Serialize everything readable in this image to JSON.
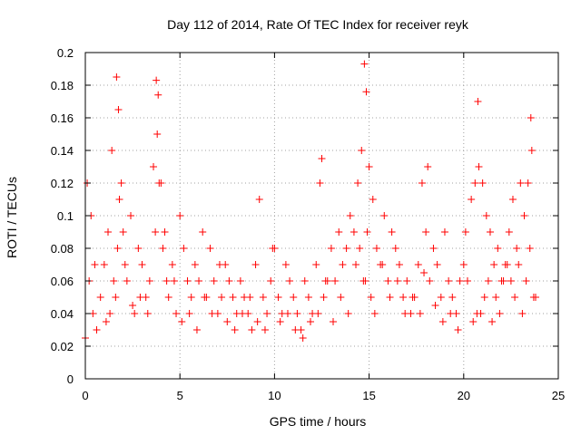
{
  "chart_data": {
    "type": "scatter",
    "title": "Day 112 of 2014, Rate Of TEC Index for receiver reyk",
    "xlabel": "GPS time / hours",
    "ylabel": "ROTI / TECUs",
    "xlim": [
      0,
      25
    ],
    "ylim": [
      0,
      0.2
    ],
    "x_ticks": [
      "0",
      "5",
      "10",
      "15",
      "20",
      "25"
    ],
    "y_ticks": [
      "0",
      "0.02",
      "0.04",
      "0.06",
      "0.08",
      "0.1",
      "0.12",
      "0.14",
      "0.16",
      "0.18",
      "0.2"
    ],
    "grid": true,
    "marker": "+",
    "color": "#ff0000",
    "series": [
      {
        "x": [
          0.0,
          0.2,
          0.4,
          0.6,
          0.8,
          1.0,
          1.2,
          1.4,
          1.6,
          1.8,
          2.0,
          2.2,
          2.4,
          2.6,
          2.8,
          3.0,
          3.2,
          3.4,
          3.6,
          3.8,
          4.0,
          4.2,
          4.4,
          4.6,
          4.8,
          5.0,
          5.2,
          5.4,
          5.6,
          5.8,
          6.0,
          6.2,
          6.4,
          6.6,
          6.8,
          7.0,
          7.2,
          7.4,
          7.6,
          7.8,
          8.0,
          8.2,
          8.4,
          8.6,
          8.8,
          9.0,
          9.2,
          9.4,
          9.6,
          9.8,
          10.0,
          10.2,
          10.4,
          10.6,
          10.8,
          11.0,
          11.2,
          11.4,
          11.6,
          11.8,
          12.0,
          12.2,
          12.4,
          12.6,
          12.8,
          13.0,
          13.2,
          13.4,
          13.6,
          13.8,
          14.0,
          14.2,
          14.4,
          14.6,
          14.8,
          15.0,
          15.2,
          15.4,
          15.6,
          15.8,
          16.0,
          16.2,
          16.4,
          16.6,
          16.8,
          17.0,
          17.2,
          17.4,
          17.6,
          17.8,
          18.0,
          18.2,
          18.4,
          18.6,
          18.8,
          19.0,
          19.2,
          19.4,
          19.6,
          19.8,
          20.0,
          20.2,
          20.4,
          20.6,
          20.8,
          21.0,
          21.2,
          21.4,
          21.6,
          21.8,
          22.0,
          22.2,
          22.4,
          22.6,
          22.8,
          23.0,
          23.2,
          23.4,
          23.6,
          23.8,
          0.1,
          0.3,
          0.5,
          1.1,
          1.3,
          1.5,
          1.7,
          1.9,
          2.1,
          2.5,
          2.9,
          3.3,
          3.7,
          3.9,
          4.1,
          4.3,
          4.7,
          5.1,
          5.5,
          5.9,
          6.3,
          6.7,
          7.1,
          7.5,
          7.9,
          8.3,
          8.7,
          9.1,
          9.5,
          9.9,
          10.3,
          10.7,
          11.1,
          11.5,
          11.9,
          12.3,
          12.5,
          12.7,
          13.1,
          13.5,
          13.9,
          14.3,
          14.5,
          14.7,
          14.9,
          15.1,
          15.3,
          15.7,
          16.1,
          16.5,
          16.9,
          17.3,
          17.7,
          17.9,
          18.1,
          18.5,
          18.9,
          19.3,
          19.7,
          20.1,
          20.5,
          20.7,
          20.9,
          21.1,
          21.3,
          21.5,
          21.7,
          21.9,
          22.1,
          22.3,
          22.5,
          22.7,
          22.9,
          23.1,
          23.3,
          23.5,
          23.7,
          1.65,
          1.75,
          3.75,
          3.85,
          14.75,
          14.85,
          20.75,
          23.55
        ],
        "y": [
          0.025,
          0.06,
          0.04,
          0.03,
          0.05,
          0.07,
          0.09,
          0.14,
          0.05,
          0.11,
          0.09,
          0.06,
          0.1,
          0.04,
          0.08,
          0.07,
          0.05,
          0.06,
          0.13,
          0.15,
          0.12,
          0.09,
          0.05,
          0.07,
          0.04,
          0.1,
          0.08,
          0.06,
          0.05,
          0.07,
          0.06,
          0.09,
          0.05,
          0.08,
          0.06,
          0.04,
          0.05,
          0.07,
          0.06,
          0.05,
          0.04,
          0.06,
          0.05,
          0.04,
          0.03,
          0.07,
          0.11,
          0.05,
          0.04,
          0.06,
          0.08,
          0.05,
          0.04,
          0.07,
          0.06,
          0.05,
          0.04,
          0.03,
          0.06,
          0.05,
          0.04,
          0.07,
          0.12,
          0.05,
          0.06,
          0.08,
          0.06,
          0.09,
          0.07,
          0.08,
          0.1,
          0.09,
          0.12,
          0.14,
          0.06,
          0.13,
          0.11,
          0.08,
          0.07,
          0.1,
          0.06,
          0.09,
          0.08,
          0.07,
          0.05,
          0.06,
          0.04,
          0.05,
          0.07,
          0.12,
          0.09,
          0.06,
          0.08,
          0.07,
          0.05,
          0.09,
          0.06,
          0.05,
          0.04,
          0.06,
          0.07,
          0.06,
          0.11,
          0.12,
          0.13,
          0.12,
          0.1,
          0.09,
          0.07,
          0.08,
          0.06,
          0.07,
          0.09,
          0.11,
          0.08,
          0.12,
          0.1,
          0.12,
          0.14,
          0.05,
          0.12,
          0.1,
          0.07,
          0.035,
          0.04,
          0.06,
          0.08,
          0.12,
          0.07,
          0.045,
          0.05,
          0.04,
          0.09,
          0.12,
          0.08,
          0.06,
          0.06,
          0.035,
          0.04,
          0.03,
          0.05,
          0.04,
          0.07,
          0.035,
          0.03,
          0.04,
          0.05,
          0.035,
          0.03,
          0.08,
          0.035,
          0.04,
          0.03,
          0.025,
          0.035,
          0.04,
          0.135,
          0.06,
          0.035,
          0.05,
          0.04,
          0.07,
          0.08,
          0.06,
          0.09,
          0.05,
          0.04,
          0.07,
          0.05,
          0.06,
          0.04,
          0.05,
          0.04,
          0.065,
          0.13,
          0.045,
          0.035,
          0.04,
          0.03,
          0.09,
          0.035,
          0.04,
          0.04,
          0.05,
          0.06,
          0.035,
          0.05,
          0.04,
          0.06,
          0.07,
          0.06,
          0.05,
          0.07,
          0.04,
          0.06,
          0.08,
          0.05,
          0.185,
          0.165,
          0.183,
          0.174,
          0.193,
          0.176,
          0.17,
          0.16
        ]
      }
    ]
  }
}
